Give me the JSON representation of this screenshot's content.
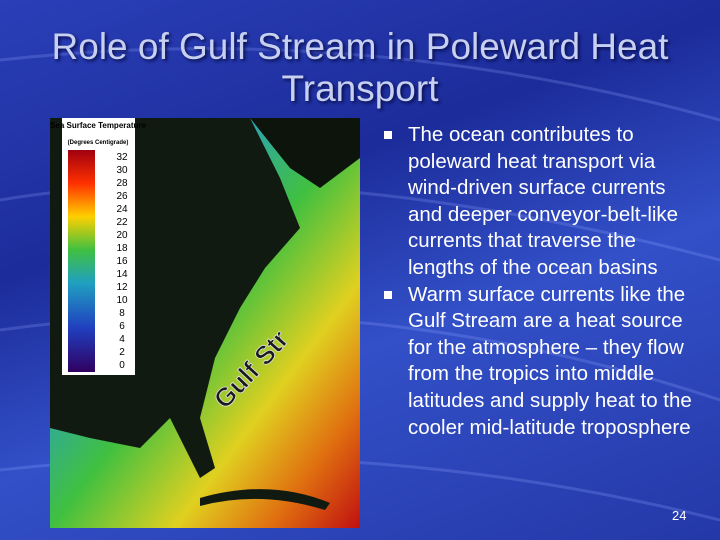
{
  "title": "Role of Gulf Stream in Poleward Heat Transport",
  "bullets": [
    "The ocean contributes to poleward heat transport via wind-driven surface currents and deeper conveyor-belt-like currents that traverse the lengths of the ocean basins",
    "Warm surface currents like the Gulf Stream are a heat source for the atmosphere – they flow from the tropics into middle latitudes and supply heat to the cooler mid-latitude troposphere"
  ],
  "slide_number": 24,
  "map": {
    "legend_title": "Sea Surface Temperature",
    "legend_units": "(Degrees Centigrade)",
    "legend_ticks": [
      32,
      30,
      28,
      26,
      24,
      22,
      20,
      18,
      16,
      14,
      12,
      10,
      8,
      6,
      4,
      2,
      0
    ],
    "label": "Gulf Stream"
  }
}
